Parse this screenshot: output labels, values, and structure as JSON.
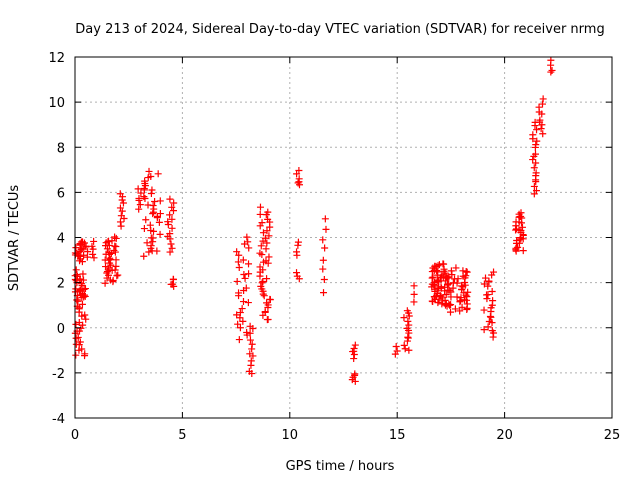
{
  "chart_data": {
    "type": "scatter",
    "title": "Day 213 of 2024, Sidereal Day-to-day VTEC variation (SDTVAR) for receiver nrmg",
    "xlabel": "GPS time / hours",
    "ylabel": "SDTVAR / TECUs",
    "xlim": [
      0,
      25
    ],
    "ylim": [
      -4,
      12
    ],
    "xticks": [
      "0",
      "5",
      "10",
      "15",
      "20",
      "25"
    ],
    "yticks": [
      "-4",
      "-2",
      "0",
      "2",
      "4",
      "6",
      "8",
      "10",
      "12"
    ],
    "grid": true,
    "marker": "plus",
    "color": "#ff0000",
    "clusters": [
      {
        "x": [
          0.0,
          0.5
        ],
        "y": [
          -1.3,
          1.6
        ],
        "n": 30
      },
      {
        "x": [
          0.0,
          0.5
        ],
        "y": [
          1.2,
          2.5
        ],
        "n": 25
      },
      {
        "x": [
          0.0,
          0.6
        ],
        "y": [
          3.0,
          3.8
        ],
        "n": 25
      },
      {
        "x": [
          0.7,
          0.9
        ],
        "y": [
          3.1,
          3.8
        ],
        "n": 5
      },
      {
        "x": [
          1.4,
          2.0
        ],
        "y": [
          2.0,
          4.0
        ],
        "n": 40
      },
      {
        "x": [
          2.1,
          2.3
        ],
        "y": [
          4.5,
          6.0
        ],
        "n": 10
      },
      {
        "x": [
          2.9,
          3.1
        ],
        "y": [
          5.2,
          6.2
        ],
        "n": 6
      },
      {
        "x": [
          3.2,
          4.0
        ],
        "y": [
          3.2,
          6.9
        ],
        "n": 40
      },
      {
        "x": [
          4.3,
          4.6
        ],
        "y": [
          3.4,
          5.7
        ],
        "n": 15
      },
      {
        "x": [
          4.4,
          4.6
        ],
        "y": [
          1.8,
          2.2
        ],
        "n": 5
      },
      {
        "x": [
          7.5,
          8.1
        ],
        "y": [
          -0.5,
          4.0
        ],
        "n": 30
      },
      {
        "x": [
          8.1,
          8.3
        ],
        "y": [
          -2.1,
          0.1
        ],
        "n": 12
      },
      {
        "x": [
          8.6,
          9.1
        ],
        "y": [
          0.3,
          5.3
        ],
        "n": 45
      },
      {
        "x": [
          10.3,
          10.5
        ],
        "y": [
          6.3,
          6.9
        ],
        "n": 6
      },
      {
        "x": [
          10.3,
          10.5
        ],
        "y": [
          3.2,
          3.8
        ],
        "n": 4
      },
      {
        "x": [
          10.3,
          10.5
        ],
        "y": [
          2.2,
          2.5
        ],
        "n": 3
      },
      {
        "x": [
          11.5,
          11.7
        ],
        "y": [
          1.6,
          4.9
        ],
        "n": 8
      },
      {
        "x": [
          12.9,
          13.1
        ],
        "y": [
          -1.3,
          -0.8
        ],
        "n": 6
      },
      {
        "x": [
          12.9,
          13.1
        ],
        "y": [
          -2.4,
          -2.1
        ],
        "n": 5
      },
      {
        "x": [
          14.9,
          15.0
        ],
        "y": [
          -1.2,
          -0.8
        ],
        "n": 3
      },
      {
        "x": [
          15.3,
          15.6
        ],
        "y": [
          -1.0,
          0.8
        ],
        "n": 15
      },
      {
        "x": [
          15.7,
          15.9
        ],
        "y": [
          1.2,
          1.8
        ],
        "n": 3
      },
      {
        "x": [
          16.6,
          17.3
        ],
        "y": [
          1.0,
          2.8
        ],
        "n": 60
      },
      {
        "x": [
          17.3,
          18.3
        ],
        "y": [
          0.7,
          2.6
        ],
        "n": 50
      },
      {
        "x": [
          19.0,
          19.5
        ],
        "y": [
          -0.4,
          2.5
        ],
        "n": 25
      },
      {
        "x": [
          20.5,
          20.9
        ],
        "y": [
          3.4,
          5.1
        ],
        "n": 30
      },
      {
        "x": [
          21.3,
          21.5
        ],
        "y": [
          5.9,
          9.1
        ],
        "n": 20
      },
      {
        "x": [
          21.6,
          21.8
        ],
        "y": [
          8.6,
          10.1
        ],
        "n": 10
      },
      {
        "x": [
          22.1,
          22.3
        ],
        "y": [
          11.3,
          11.8
        ],
        "n": 4
      }
    ]
  }
}
